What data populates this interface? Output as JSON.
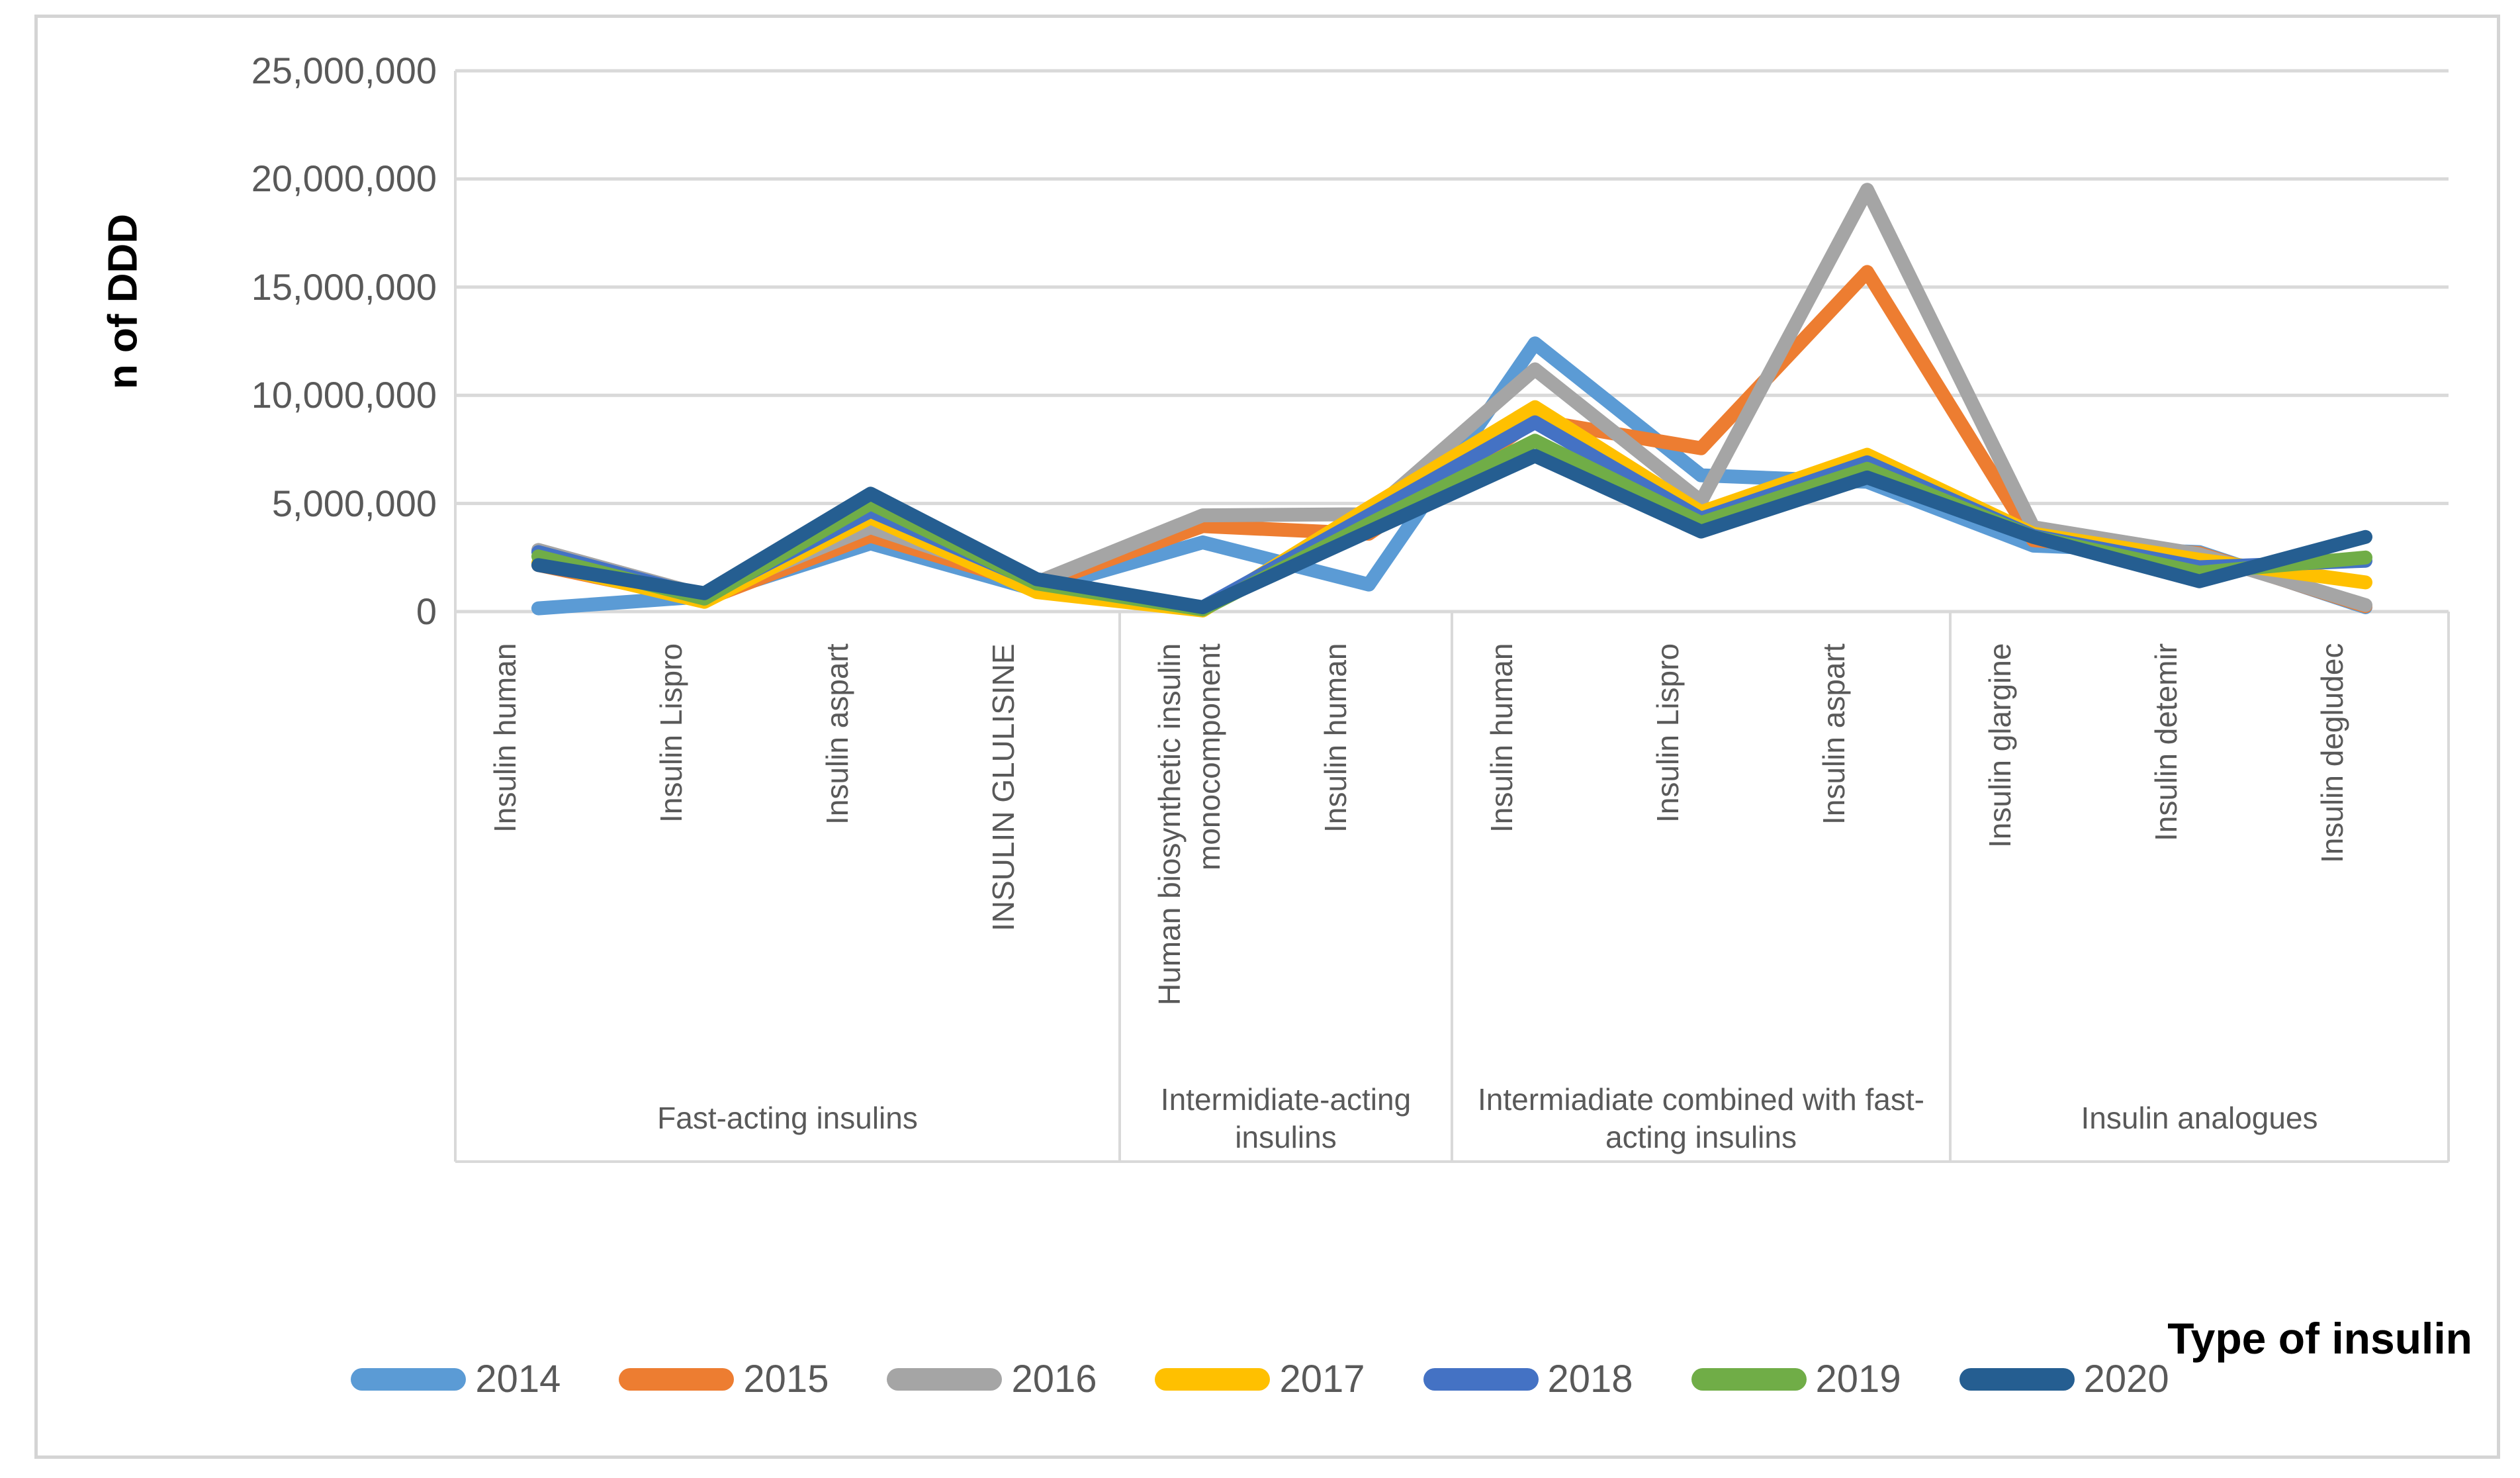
{
  "chart_data": {
    "type": "line",
    "title": "",
    "xlabel": "Type of insulin",
    "ylabel": "n of DDD",
    "ylim": [
      0,
      25000000
    ],
    "grid": true,
    "grid_color": "#d9d9d9",
    "text_color": "#595959",
    "legend_position": "bottom",
    "y_ticks": [
      {
        "value": 0,
        "label": "0"
      },
      {
        "value": 5000000,
        "label": "5,000,000"
      },
      {
        "value": 10000000,
        "label": "10,000,000"
      },
      {
        "value": 15000000,
        "label": "15,000,000"
      },
      {
        "value": 20000000,
        "label": "20,000,000"
      },
      {
        "value": 25000000,
        "label": "25,000,000"
      }
    ],
    "categories": [
      "Insulin human",
      "Insulin Lispro",
      "Insulin aspart",
      "INSULIN GLULISINE",
      "Human biosynthetic insulin monocomponent",
      "Insulin human",
      "Insulin human",
      "Insulin Lispro",
      "Insulin aspart",
      "Insulin glargine",
      "Insulin detemir",
      "Insulin degludec"
    ],
    "groups": [
      {
        "label": "Fast-acting insulins",
        "count": 4
      },
      {
        "label": "Intermidiate-acting insulins",
        "count": 2
      },
      {
        "label": "Intermiadiate combined with fast-acting insulins",
        "count": 3
      },
      {
        "label": "Insulin analogues",
        "count": 3
      }
    ],
    "series": [
      {
        "name": "2014",
        "color": "#5B9BD5",
        "values": [
          150000,
          700000,
          3150000,
          1000000,
          3200000,
          1250000,
          12400000,
          6300000,
          6000000,
          3050000,
          2750000,
          200000
        ]
      },
      {
        "name": "2015",
        "color": "#ED7D31",
        "values": [
          2150000,
          550000,
          3500000,
          1200000,
          3950000,
          3600000,
          8850000,
          7550000,
          15700000,
          3300000,
          2700000,
          250000
        ]
      },
      {
        "name": "2016",
        "color": "#A5A5A5",
        "values": [
          2850000,
          750000,
          3900000,
          1350000,
          4450000,
          4500000,
          11200000,
          5100000,
          19500000,
          3900000,
          2650000,
          300000
        ]
      },
      {
        "name": "2017",
        "color": "#FFC000",
        "values": [
          2250000,
          450000,
          4350000,
          900000,
          50000,
          4800000,
          9450000,
          4600000,
          7250000,
          3600000,
          2400000,
          1350000
        ]
      },
      {
        "name": "2018",
        "color": "#4472C4",
        "values": [
          2750000,
          700000,
          4650000,
          1350000,
          200000,
          4450000,
          8750000,
          4300000,
          6900000,
          3500000,
          2050000,
          2350000
        ]
      },
      {
        "name": "2019",
        "color": "#70AD47",
        "values": [
          2550000,
          600000,
          5000000,
          1300000,
          100000,
          4050000,
          7900000,
          4100000,
          6600000,
          3450000,
          1800000,
          2500000
        ]
      },
      {
        "name": "2020",
        "color": "#255E91",
        "values": [
          2150000,
          850000,
          5450000,
          1500000,
          200000,
          3700000,
          7200000,
          3700000,
          6200000,
          3450000,
          1400000,
          3450000
        ]
      }
    ]
  }
}
